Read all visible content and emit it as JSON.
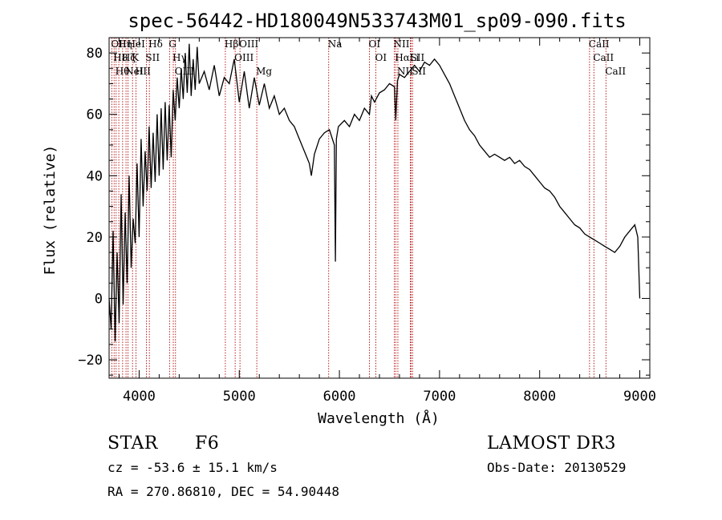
{
  "chart_data": {
    "type": "line",
    "title": "spec-56442-HD180049N533743M01_sp09-090.fits",
    "xlabel": "Wavelength (Å)",
    "ylabel": "Flux (relative)",
    "xlim": [
      3700,
      9100
    ],
    "ylim": [
      -26,
      85
    ],
    "xticks": [
      4000,
      5000,
      6000,
      7000,
      8000,
      9000
    ],
    "yticks": [
      -20,
      0,
      20,
      40,
      60,
      80
    ],
    "grid": false,
    "series": [
      {
        "name": "spectrum",
        "x": [
          3700,
          3720,
          3740,
          3760,
          3780,
          3800,
          3820,
          3840,
          3860,
          3880,
          3900,
          3920,
          3940,
          3960,
          3980,
          4000,
          4020,
          4040,
          4060,
          4080,
          4100,
          4120,
          4140,
          4160,
          4180,
          4200,
          4220,
          4240,
          4260,
          4280,
          4300,
          4320,
          4340,
          4360,
          4380,
          4400,
          4420,
          4440,
          4460,
          4480,
          4500,
          4520,
          4540,
          4560,
          4580,
          4600,
          4650,
          4700,
          4750,
          4800,
          4850,
          4900,
          4950,
          5000,
          5050,
          5100,
          5150,
          5200,
          5250,
          5300,
          5350,
          5400,
          5450,
          5500,
          5550,
          5600,
          5650,
          5700,
          5720,
          5750,
          5800,
          5850,
          5900,
          5950,
          5960,
          5970,
          5990,
          6050,
          6100,
          6150,
          6200,
          6250,
          6300,
          6320,
          6350,
          6400,
          6450,
          6500,
          6550,
          6563,
          6580,
          6600,
          6650,
          6700,
          6750,
          6800,
          6850,
          6900,
          6950,
          7000,
          7050,
          7100,
          7150,
          7200,
          7250,
          7300,
          7350,
          7400,
          7450,
          7500,
          7550,
          7600,
          7650,
          7700,
          7750,
          7800,
          7850,
          7900,
          7950,
          8000,
          8050,
          8100,
          8150,
          8200,
          8250,
          8300,
          8350,
          8400,
          8450,
          8500,
          8550,
          8600,
          8650,
          8700,
          8750,
          8800,
          8850,
          8900,
          8950,
          8980,
          9000
        ],
        "values": [
          0,
          -10,
          22,
          -14,
          15,
          -8,
          34,
          -2,
          28,
          5,
          40,
          10,
          26,
          18,
          44,
          20,
          52,
          30,
          48,
          35,
          56,
          36,
          54,
          38,
          60,
          40,
          62,
          42,
          64,
          45,
          63,
          46,
          68,
          58,
          72,
          62,
          75,
          65,
          80,
          67,
          83,
          66,
          78,
          68,
          82,
          70,
          74,
          68,
          76,
          66,
          72,
          70,
          78,
          64,
          74,
          62,
          72,
          63,
          70,
          62,
          66,
          60,
          62,
          58,
          56,
          52,
          48,
          44,
          40,
          47,
          52,
          54,
          55,
          50,
          12,
          52,
          56,
          58,
          56,
          60,
          58,
          62,
          60,
          66,
          64,
          67,
          68,
          70,
          69,
          58,
          71,
          73,
          72,
          74,
          76,
          74,
          77,
          76,
          78,
          76,
          73,
          70,
          66,
          62,
          58,
          55,
          53,
          50,
          48,
          46,
          47,
          46,
          45,
          46,
          44,
          45,
          43,
          42,
          40,
          38,
          36,
          35,
          33,
          30,
          28,
          26,
          24,
          23,
          21,
          20,
          19,
          18,
          17,
          16,
          15,
          17,
          20,
          22,
          24,
          20,
          0
        ]
      }
    ],
    "spectral_lines": [
      {
        "wave": 3727,
        "label": "OII"
      },
      {
        "wave": 3750,
        "label": "H8"
      },
      {
        "wave": 3770,
        "label": "Hθ"
      },
      {
        "wave": 3797,
        "label": "Hη"
      },
      {
        "wave": 3835,
        "label": "Hζ"
      },
      {
        "wave": 3869,
        "label": "NeIII"
      },
      {
        "wave": 3889,
        "label": "HeI"
      },
      {
        "wave": 3934,
        "label": "K"
      },
      {
        "wave": 3968,
        "label": "H"
      },
      {
        "wave": 4072,
        "label": "SII"
      },
      {
        "wave": 4102,
        "label": "Hδ"
      },
      {
        "wave": 4304,
        "label": "G"
      },
      {
        "wave": 4341,
        "label": "Hγ"
      },
      {
        "wave": 4363,
        "label": "OIII"
      },
      {
        "wave": 4861,
        "label": "Hβ"
      },
      {
        "wave": 4959,
        "label": "OIII"
      },
      {
        "wave": 5007,
        "label": "OIII"
      },
      {
        "wave": 5175,
        "label": "Mg"
      },
      {
        "wave": 5893,
        "label": "Na"
      },
      {
        "wave": 6300,
        "label": "OI"
      },
      {
        "wave": 6364,
        "label": "OI"
      },
      {
        "wave": 6548,
        "label": "NII"
      },
      {
        "wave": 6563,
        "label": "Hα"
      },
      {
        "wave": 6584,
        "label": "NII"
      },
      {
        "wave": 6708,
        "label": "Li"
      },
      {
        "wave": 6717,
        "label": "SII"
      },
      {
        "wave": 6731,
        "label": "SII"
      },
      {
        "wave": 8498,
        "label": "CaII"
      },
      {
        "wave": 8542,
        "label": "CaII"
      },
      {
        "wave": 8662,
        "label": "CaII"
      }
    ],
    "line_color": "#b00000"
  },
  "info": {
    "object_type": "STAR",
    "subclass": "F6",
    "survey": "LAMOST DR3",
    "redshift": "cz = -53.6 ± 15.1 km/s",
    "obs_date": "Obs-Date: 20130529",
    "coords": "RA = 270.86810, DEC =  54.90448"
  }
}
